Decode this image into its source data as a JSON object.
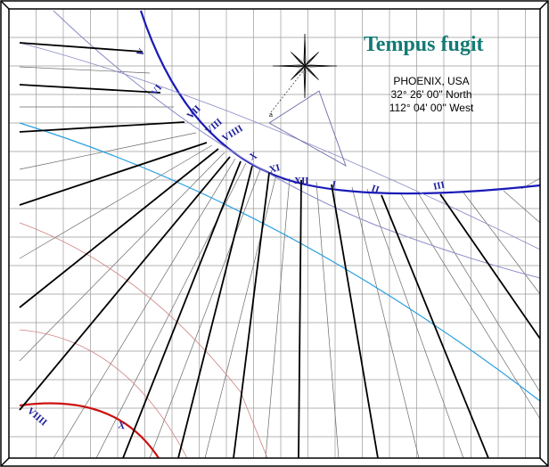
{
  "dial": {
    "title": "Tempus fugit",
    "location": "PHOENIX, USA",
    "latitude": "32° 26' 00'' North",
    "longitude": "112° 04' 00'' West",
    "compass_label": "a",
    "colors": {
      "grid": "#9a9a9a",
      "hour_line": "#000000",
      "half_hour_line": "#6a6a6a",
      "date_curve": "#1a1ab8",
      "winter_curve": "#cc1111",
      "equinox_line": "#2aa0e0",
      "light_curve": "#8a8ac8",
      "pink_curve": "#d08080",
      "title": "#137a74",
      "hour_label": "#1e1e9a"
    },
    "hour_labels_top": [
      "V",
      "VI",
      "VII",
      "VIII",
      "VIIII",
      "X",
      "XI",
      "XII",
      "I",
      "II",
      "III"
    ],
    "hour_labels_bottom": [
      "VIIII",
      "X"
    ]
  }
}
